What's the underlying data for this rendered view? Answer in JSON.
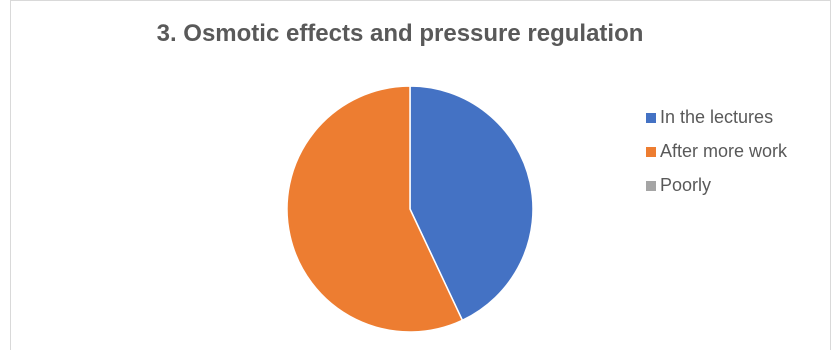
{
  "chart_data": {
    "type": "pie",
    "title": "3. Osmotic effects and pressure regulation",
    "categories": [
      "In the lectures",
      "After more work",
      "Poorly"
    ],
    "values": [
      43,
      57,
      0
    ],
    "colors": [
      "#4472c4",
      "#ed7d31",
      "#a5a5a5"
    ],
    "legend_position": "right"
  }
}
